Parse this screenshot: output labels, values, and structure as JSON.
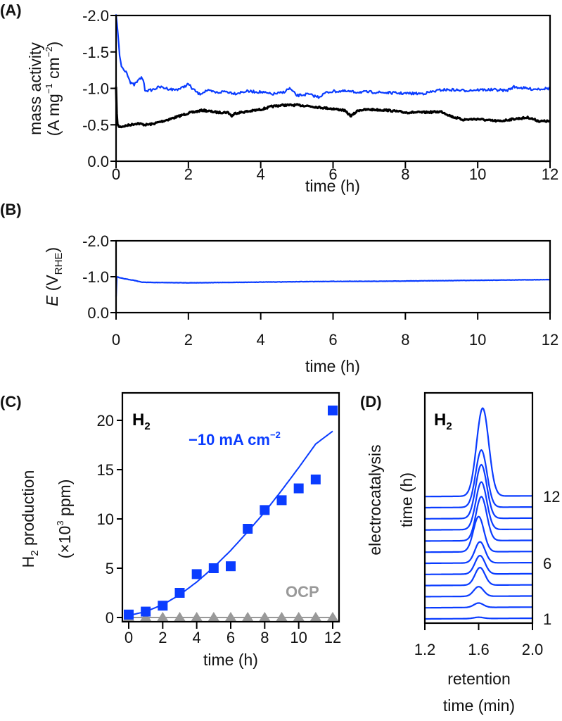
{
  "colors": {
    "blue": "#0a3cff",
    "black": "#000000",
    "gray": "#999999"
  },
  "panels": {
    "A": {
      "label": "(A)"
    },
    "B": {
      "label": "(B)"
    },
    "C": {
      "label": "(C)"
    },
    "D": {
      "label": "(D)"
    }
  },
  "chart_data": [
    {
      "id": "A",
      "type": "line",
      "title": "",
      "xlabel": "time (h)",
      "ylabel_line1": "mass activity",
      "ylabel_line2_parts": [
        "(A mg",
        "−1",
        " cm",
        "−2",
        ")"
      ],
      "xlim": [
        0,
        12
      ],
      "ylim": [
        0.0,
        -2.0
      ],
      "xticks": [
        0,
        2,
        4,
        6,
        8,
        10,
        12
      ],
      "xtick_labels": [
        "0",
        "2",
        "4",
        "6",
        "8",
        "10",
        "12"
      ],
      "yticks": [
        -2.0,
        -1.5,
        -1.0,
        -0.5,
        0.0
      ],
      "ytick_labels": [
        "-2.0",
        "-1.5",
        "-1.0",
        "-0.5",
        "0.0"
      ],
      "grid": false,
      "series": [
        {
          "name": "blue trace",
          "color": "blue",
          "x": [
            0,
            0.05,
            0.1,
            0.15,
            0.2,
            0.3,
            0.4,
            0.5,
            0.6,
            0.7,
            0.75,
            0.8,
            0.9,
            1.0,
            1.2,
            1.4,
            1.6,
            1.8,
            2.0,
            2.1,
            2.3,
            2.5,
            2.8,
            3.0,
            3.3,
            3.6,
            4.0,
            4.3,
            4.6,
            4.8,
            5.0,
            5.3,
            5.6,
            5.8,
            6.0,
            6.3,
            6.6,
            7.0,
            7.5,
            8.0,
            8.5,
            9.0,
            9.3,
            9.6,
            10.0,
            10.5,
            10.8,
            11.0,
            11.5,
            12.0
          ],
          "y": [
            -2.0,
            -1.75,
            -1.45,
            -1.3,
            -1.27,
            -1.22,
            -1.07,
            -1.05,
            -1.1,
            -1.15,
            -1.12,
            -0.98,
            -0.97,
            -0.98,
            -1.02,
            -1.0,
            -0.98,
            -1.0,
            -1.06,
            -1.0,
            -0.92,
            -0.97,
            -0.94,
            -0.96,
            -0.93,
            -0.96,
            -0.95,
            -0.92,
            -0.94,
            -1.0,
            -0.9,
            -0.92,
            -0.88,
            -0.94,
            -0.96,
            -0.96,
            -0.95,
            -0.95,
            -0.94,
            -0.93,
            -0.93,
            -0.98,
            -0.98,
            -0.97,
            -0.98,
            -0.98,
            -0.97,
            -1.02,
            -0.99,
            -1.0
          ]
        },
        {
          "name": "black trace",
          "color": "black",
          "x": [
            0,
            0.03,
            0.1,
            0.3,
            0.6,
            0.8,
            1.0,
            1.5,
            2.0,
            2.4,
            2.8,
            3.1,
            3.2,
            3.3,
            3.6,
            4.0,
            4.3,
            4.6,
            5.0,
            5.3,
            5.6,
            6.0,
            6.3,
            6.5,
            6.7,
            7.0,
            7.5,
            8.0,
            8.5,
            9.0,
            9.3,
            9.6,
            10.0,
            10.3,
            10.6,
            11.0,
            11.4,
            11.7,
            12.0
          ],
          "y": [
            -1.0,
            -0.5,
            -0.47,
            -0.49,
            -0.52,
            -0.5,
            -0.51,
            -0.58,
            -0.66,
            -0.7,
            -0.67,
            -0.67,
            -0.62,
            -0.66,
            -0.68,
            -0.71,
            -0.75,
            -0.77,
            -0.77,
            -0.76,
            -0.74,
            -0.72,
            -0.7,
            -0.62,
            -0.7,
            -0.71,
            -0.7,
            -0.67,
            -0.67,
            -0.68,
            -0.61,
            -0.57,
            -0.58,
            -0.56,
            -0.55,
            -0.58,
            -0.6,
            -0.55,
            -0.55
          ]
        }
      ]
    },
    {
      "id": "B",
      "type": "line",
      "title": "",
      "xlabel": "time (h)",
      "ylabel_parts": [
        "E",
        " (V",
        "RHE",
        ")"
      ],
      "xlim": [
        0,
        12
      ],
      "ylim": [
        0.0,
        -2.0
      ],
      "xticks": [
        0,
        2,
        4,
        6,
        8,
        10,
        12
      ],
      "xtick_labels": [
        "0",
        "2",
        "4",
        "6",
        "8",
        "10",
        "12"
      ],
      "yticks": [
        -2.0,
        -1.0,
        0.0
      ],
      "ytick_labels": [
        "-2.0",
        "-1.0",
        "0.0"
      ],
      "grid": false,
      "series": [
        {
          "name": "potential",
          "color": "blue",
          "x": [
            0,
            0.01,
            0.03,
            0.1,
            0.3,
            0.5,
            0.7,
            1.0,
            2.0,
            3.0,
            4.0,
            5.0,
            6.0,
            7.0,
            8.0,
            9.0,
            10.0,
            11.0,
            12.0
          ],
          "y": [
            -0.45,
            -0.95,
            -1.0,
            -0.97,
            -0.93,
            -0.9,
            -0.85,
            -0.84,
            -0.83,
            -0.84,
            -0.85,
            -0.86,
            -0.87,
            -0.87,
            -0.88,
            -0.89,
            -0.9,
            -0.91,
            -0.92
          ]
        }
      ]
    },
    {
      "id": "C",
      "type": "scatter",
      "title": "",
      "annotation_species": "H",
      "annotation_species_sub": "2",
      "annotation_current": "−10 mA cm",
      "annotation_current_sup": "−2",
      "annotation_ocp": "OCP",
      "xlabel": "time (h)",
      "ylabel_line1_parts": [
        "H",
        "2",
        " production"
      ],
      "ylabel_line2_parts": [
        "(×10",
        "3",
        " ppm)"
      ],
      "xlim": [
        0,
        12
      ],
      "ylim": [
        0,
        20
      ],
      "xticks": [
        0,
        2,
        4,
        6,
        8,
        10,
        12
      ],
      "xtick_labels": [
        "0",
        "2",
        "4",
        "6",
        "8",
        "10",
        "12"
      ],
      "yticks": [
        0,
        5,
        10,
        15,
        20
      ],
      "ytick_labels": [
        "0",
        "5",
        "10",
        "15",
        "20"
      ],
      "grid": false,
      "series": [
        {
          "name": "−10 mA cm−2",
          "marker": "square",
          "color": "blue",
          "x": [
            0,
            1,
            2,
            3,
            4,
            5,
            6,
            7,
            8,
            9,
            10,
            11,
            12
          ],
          "y": [
            0.3,
            0.6,
            1.2,
            2.5,
            4.4,
            5.0,
            5.2,
            9.0,
            10.9,
            11.9,
            13.1,
            14.0,
            21.0
          ]
        },
        {
          "name": "fit",
          "type": "line",
          "color": "blue",
          "x": [
            0,
            1,
            2,
            3,
            4,
            5,
            6,
            7,
            8,
            9,
            10,
            11,
            12
          ],
          "y": [
            0.2,
            0.6,
            1.3,
            2.3,
            3.6,
            5.1,
            6.8,
            8.7,
            10.7,
            12.9,
            15.2,
            17.6,
            18.9
          ]
        },
        {
          "name": "OCP",
          "marker": "triangle",
          "color": "gray",
          "x": [
            0,
            1,
            2,
            3,
            4,
            5,
            6,
            7,
            8,
            9,
            10,
            11,
            12
          ],
          "y": [
            0,
            0,
            0,
            0,
            0,
            0,
            0,
            0,
            0,
            0,
            0,
            0,
            0
          ]
        }
      ]
    },
    {
      "id": "D",
      "type": "line",
      "title": "",
      "annotation_species": "H",
      "annotation_species_sub": "2",
      "xlabel_line1": "retention",
      "xlabel_line2": "time (min)",
      "ylabel_line1": "electrocatalysis",
      "ylabel_line2": "time (h)",
      "xlim": [
        1.2,
        2.0
      ],
      "xticks": [
        1.2,
        1.6,
        2.0
      ],
      "xtick_labels": [
        "1.2",
        "1.6",
        "2.0"
      ],
      "right_labels": [
        {
          "text": "12",
          "trace_hour": 12
        },
        {
          "text": "6",
          "trace_hour": 6
        },
        {
          "text": "1",
          "trace_hour": 1
        }
      ],
      "grid": false,
      "series_note": "stacked chromatograms offset vertically by electrocatalysis time; peak relative heights",
      "traces": [
        {
          "hour": 1,
          "peak_center": 1.6,
          "peak_height": 0.015
        },
        {
          "hour": 2,
          "peak_center": 1.6,
          "peak_height": 0.05
        },
        {
          "hour": 3,
          "peak_center": 1.6,
          "peak_height": 0.11
        },
        {
          "hour": 4,
          "peak_center": 1.61,
          "peak_height": 0.2
        },
        {
          "hour": 5,
          "peak_center": 1.61,
          "peak_height": 0.21
        },
        {
          "hour": 6,
          "peak_center": 1.61,
          "peak_height": 0.24
        },
        {
          "hour": 7,
          "peak_center": 1.6,
          "peak_height": 0.4
        },
        {
          "hour": 8,
          "peak_center": 1.62,
          "peak_height": 0.5
        },
        {
          "hour": 9,
          "peak_center": 1.62,
          "peak_height": 0.54
        },
        {
          "hour": 10,
          "peak_center": 1.62,
          "peak_height": 0.61
        },
        {
          "hour": 11,
          "peak_center": 1.62,
          "peak_height": 0.65
        },
        {
          "hour": 12,
          "peak_center": 1.63,
          "peak_height": 1.0
        }
      ]
    }
  ]
}
